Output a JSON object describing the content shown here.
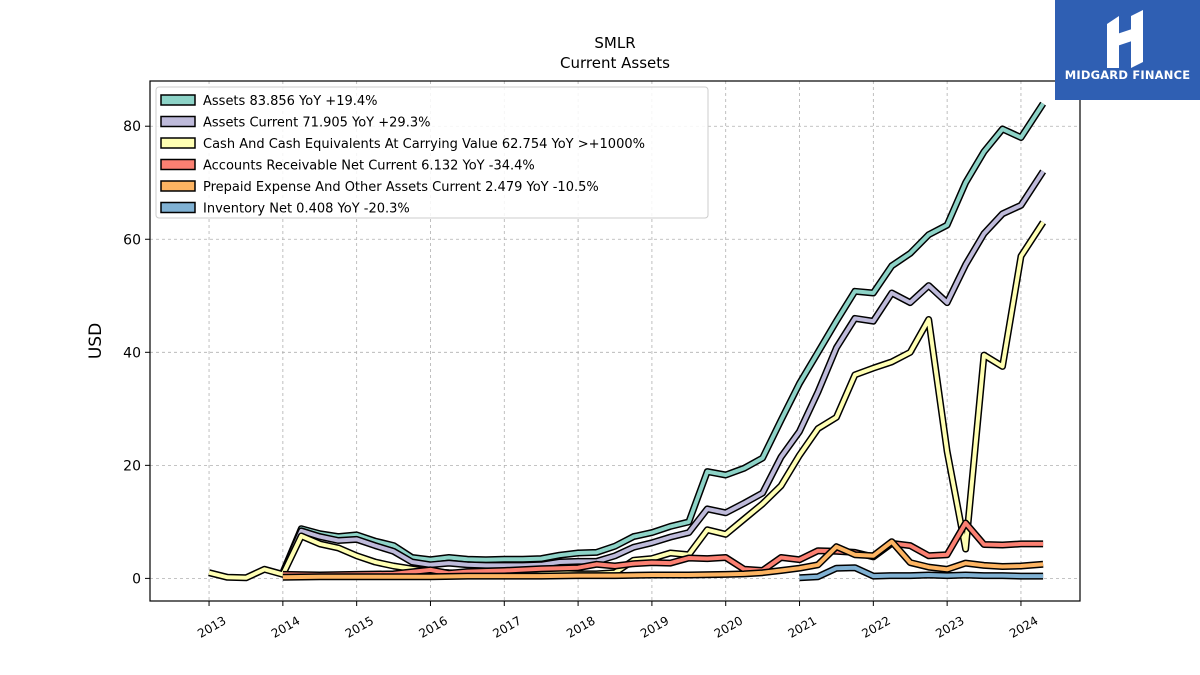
{
  "logo": {
    "text": "MIDGARD FINANCE",
    "bg_color": "#2f5fb3"
  },
  "chart_data": {
    "type": "line",
    "title": "SMLR",
    "subtitle": "Current  Assets",
    "ylabel": "USD",
    "xlabel": "",
    "ylim": [
      -4,
      88
    ],
    "xlim": [
      2012.2,
      2024.8
    ],
    "yticks": [
      0,
      20,
      40,
      60,
      80
    ],
    "xticks": [
      2013,
      2014,
      2015,
      2016,
      2017,
      2018,
      2019,
      2020,
      2021,
      2022,
      2023,
      2024
    ],
    "grid": true,
    "legend_position": "top-left",
    "series": [
      {
        "name": "Assets  83.856 YoY +19.4%",
        "color": "#8dd3c7",
        "points": [
          [
            2014.0,
            1.0
          ],
          [
            2014.25,
            8.8
          ],
          [
            2014.5,
            7.9
          ],
          [
            2014.75,
            7.4
          ],
          [
            2015.0,
            7.7
          ],
          [
            2015.25,
            6.6
          ],
          [
            2015.5,
            5.8
          ],
          [
            2015.75,
            3.7
          ],
          [
            2016.0,
            3.3
          ],
          [
            2016.25,
            3.7
          ],
          [
            2016.5,
            3.4
          ],
          [
            2016.75,
            3.3
          ],
          [
            2017.0,
            3.4
          ],
          [
            2017.25,
            3.4
          ],
          [
            2017.5,
            3.5
          ],
          [
            2017.75,
            4.1
          ],
          [
            2018.0,
            4.5
          ],
          [
            2018.25,
            4.6
          ],
          [
            2018.5,
            5.7
          ],
          [
            2018.75,
            7.4
          ],
          [
            2019.0,
            8.1
          ],
          [
            2019.25,
            9.2
          ],
          [
            2019.5,
            10.0
          ],
          [
            2019.75,
            18.9
          ],
          [
            2020.0,
            18.3
          ],
          [
            2020.25,
            19.5
          ],
          [
            2020.5,
            21.3
          ],
          [
            2020.75,
            28.0
          ],
          [
            2021.0,
            34.5
          ],
          [
            2021.25,
            40.0
          ],
          [
            2021.5,
            45.5
          ],
          [
            2021.75,
            50.8
          ],
          [
            2022.0,
            50.5
          ],
          [
            2022.25,
            55.3
          ],
          [
            2022.5,
            57.5
          ],
          [
            2022.75,
            60.8
          ],
          [
            2023.0,
            62.5
          ],
          [
            2023.25,
            70.0
          ],
          [
            2023.5,
            75.5
          ],
          [
            2023.75,
            79.5
          ],
          [
            2024.0,
            78.0
          ],
          [
            2024.3,
            84.0
          ]
        ]
      },
      {
        "name": "Assets Current  71.905 YoY +29.3%",
        "color": "#bebada",
        "points": [
          [
            2014.0,
            1.0
          ],
          [
            2014.25,
            8.4
          ],
          [
            2014.5,
            7.4
          ],
          [
            2014.75,
            6.7
          ],
          [
            2015.0,
            6.9
          ],
          [
            2015.25,
            5.8
          ],
          [
            2015.5,
            4.8
          ],
          [
            2015.75,
            2.9
          ],
          [
            2016.0,
            2.4
          ],
          [
            2016.25,
            2.7
          ],
          [
            2016.5,
            2.4
          ],
          [
            2016.75,
            2.3
          ],
          [
            2017.0,
            2.3
          ],
          [
            2017.25,
            2.3
          ],
          [
            2017.5,
            2.4
          ],
          [
            2017.75,
            2.9
          ],
          [
            2018.0,
            3.0
          ],
          [
            2018.25,
            3.0
          ],
          [
            2018.5,
            4.0
          ],
          [
            2018.75,
            5.5
          ],
          [
            2019.0,
            6.3
          ],
          [
            2019.25,
            7.3
          ],
          [
            2019.5,
            8.1
          ],
          [
            2019.75,
            12.3
          ],
          [
            2020.0,
            11.6
          ],
          [
            2020.25,
            13.3
          ],
          [
            2020.5,
            15.1
          ],
          [
            2020.75,
            21.5
          ],
          [
            2021.0,
            26.0
          ],
          [
            2021.25,
            33.0
          ],
          [
            2021.5,
            40.8
          ],
          [
            2021.75,
            46.0
          ],
          [
            2022.0,
            45.5
          ],
          [
            2022.25,
            50.5
          ],
          [
            2022.5,
            48.8
          ],
          [
            2022.75,
            51.8
          ],
          [
            2023.0,
            48.8
          ],
          [
            2023.25,
            55.5
          ],
          [
            2023.5,
            61.0
          ],
          [
            2023.75,
            64.5
          ],
          [
            2024.0,
            66.0
          ],
          [
            2024.3,
            72.0
          ]
        ]
      },
      {
        "name": "Cash And Cash Equivalents At Carrying Value  62.754 YoY >+1000%",
        "color": "#ffffb3",
        "points": [
          [
            2013.0,
            1.0
          ],
          [
            2013.25,
            0.2
          ],
          [
            2013.5,
            0.1
          ],
          [
            2013.75,
            1.6
          ],
          [
            2014.0,
            0.7
          ],
          [
            2014.25,
            7.5
          ],
          [
            2014.5,
            6.1
          ],
          [
            2014.75,
            5.4
          ],
          [
            2015.0,
            4.0
          ],
          [
            2015.25,
            2.9
          ],
          [
            2015.5,
            2.2
          ],
          [
            2015.75,
            1.7
          ],
          [
            2016.0,
            1.2
          ],
          [
            2016.25,
            1.0
          ],
          [
            2016.5,
            0.9
          ],
          [
            2016.75,
            1.0
          ],
          [
            2017.0,
            1.0
          ],
          [
            2017.25,
            1.0
          ],
          [
            2017.5,
            0.9
          ],
          [
            2017.75,
            0.9
          ],
          [
            2018.0,
            0.8
          ],
          [
            2018.25,
            0.8
          ],
          [
            2018.5,
            1.0
          ],
          [
            2018.75,
            3.2
          ],
          [
            2019.0,
            3.5
          ],
          [
            2019.25,
            4.5
          ],
          [
            2019.5,
            4.2
          ],
          [
            2019.75,
            8.6
          ],
          [
            2020.0,
            7.8
          ],
          [
            2020.25,
            10.5
          ],
          [
            2020.5,
            13.2
          ],
          [
            2020.75,
            16.4
          ],
          [
            2021.0,
            21.8
          ],
          [
            2021.25,
            26.5
          ],
          [
            2021.5,
            28.5
          ],
          [
            2021.75,
            36.0
          ],
          [
            2022.0,
            37.2
          ],
          [
            2022.25,
            38.3
          ],
          [
            2022.5,
            40.0
          ],
          [
            2022.75,
            45.8
          ],
          [
            2023.0,
            22.5
          ],
          [
            2023.25,
            5.2
          ],
          [
            2023.5,
            39.5
          ],
          [
            2023.75,
            37.5
          ],
          [
            2024.0,
            57.0
          ],
          [
            2024.3,
            63.0
          ]
        ]
      },
      {
        "name": "Accounts Receivable Net Current  6.132 YoY -34.4%",
        "color": "#fb8072",
        "points": [
          [
            2014.0,
            0.7
          ],
          [
            2014.5,
            0.6
          ],
          [
            2015.0,
            0.7
          ],
          [
            2015.5,
            0.8
          ],
          [
            2016.0,
            1.5
          ],
          [
            2016.25,
            0.9
          ],
          [
            2016.5,
            1.2
          ],
          [
            2017.0,
            1.4
          ],
          [
            2017.5,
            1.7
          ],
          [
            2018.0,
            1.9
          ],
          [
            2018.25,
            2.5
          ],
          [
            2018.5,
            2.2
          ],
          [
            2018.75,
            2.6
          ],
          [
            2019.0,
            2.8
          ],
          [
            2019.25,
            2.7
          ],
          [
            2019.5,
            3.6
          ],
          [
            2019.75,
            3.5
          ],
          [
            2020.0,
            3.7
          ],
          [
            2020.25,
            1.6
          ],
          [
            2020.5,
            1.4
          ],
          [
            2020.75,
            3.7
          ],
          [
            2021.0,
            3.3
          ],
          [
            2021.25,
            4.9
          ],
          [
            2021.5,
            4.8
          ],
          [
            2021.75,
            4.6
          ],
          [
            2022.0,
            3.8
          ],
          [
            2022.25,
            6.2
          ],
          [
            2022.5,
            5.8
          ],
          [
            2022.75,
            4.0
          ],
          [
            2023.0,
            4.2
          ],
          [
            2023.25,
            9.8
          ],
          [
            2023.5,
            6.0
          ],
          [
            2023.75,
            5.9
          ],
          [
            2024.0,
            6.1
          ],
          [
            2024.3,
            6.1
          ]
        ]
      },
      {
        "name": "Prepaid Expense And Other Assets Current  2.479 YoY -10.5%",
        "color": "#fdb462",
        "points": [
          [
            2014.0,
            0.2
          ],
          [
            2014.5,
            0.3
          ],
          [
            2015.0,
            0.3
          ],
          [
            2015.5,
            0.3
          ],
          [
            2016.0,
            0.3
          ],
          [
            2016.5,
            0.4
          ],
          [
            2017.0,
            0.4
          ],
          [
            2017.5,
            0.4
          ],
          [
            2018.0,
            0.5
          ],
          [
            2018.5,
            0.5
          ],
          [
            2019.0,
            0.6
          ],
          [
            2019.5,
            0.6
          ],
          [
            2020.0,
            0.7
          ],
          [
            2020.25,
            0.8
          ],
          [
            2020.5,
            1.0
          ],
          [
            2020.75,
            1.4
          ],
          [
            2021.0,
            1.8
          ],
          [
            2021.25,
            2.4
          ],
          [
            2021.5,
            5.6
          ],
          [
            2021.75,
            4.2
          ],
          [
            2022.0,
            4.0
          ],
          [
            2022.25,
            6.5
          ],
          [
            2022.5,
            2.8
          ],
          [
            2022.75,
            2.0
          ],
          [
            2023.0,
            1.6
          ],
          [
            2023.25,
            2.7
          ],
          [
            2023.5,
            2.3
          ],
          [
            2023.75,
            2.1
          ],
          [
            2024.0,
            2.2
          ],
          [
            2024.3,
            2.5
          ]
        ]
      },
      {
        "name": "Inventory Net  0.408 YoY -20.3%",
        "color": "#80b1d3",
        "points": [
          [
            2021.0,
            0.1
          ],
          [
            2021.25,
            0.3
          ],
          [
            2021.5,
            1.8
          ],
          [
            2021.75,
            1.9
          ],
          [
            2022.0,
            0.4
          ],
          [
            2022.25,
            0.5
          ],
          [
            2022.5,
            0.5
          ],
          [
            2022.75,
            0.6
          ],
          [
            2023.0,
            0.5
          ],
          [
            2023.25,
            0.6
          ],
          [
            2023.5,
            0.5
          ],
          [
            2023.75,
            0.5
          ],
          [
            2024.0,
            0.4
          ],
          [
            2024.3,
            0.4
          ]
        ]
      }
    ]
  }
}
